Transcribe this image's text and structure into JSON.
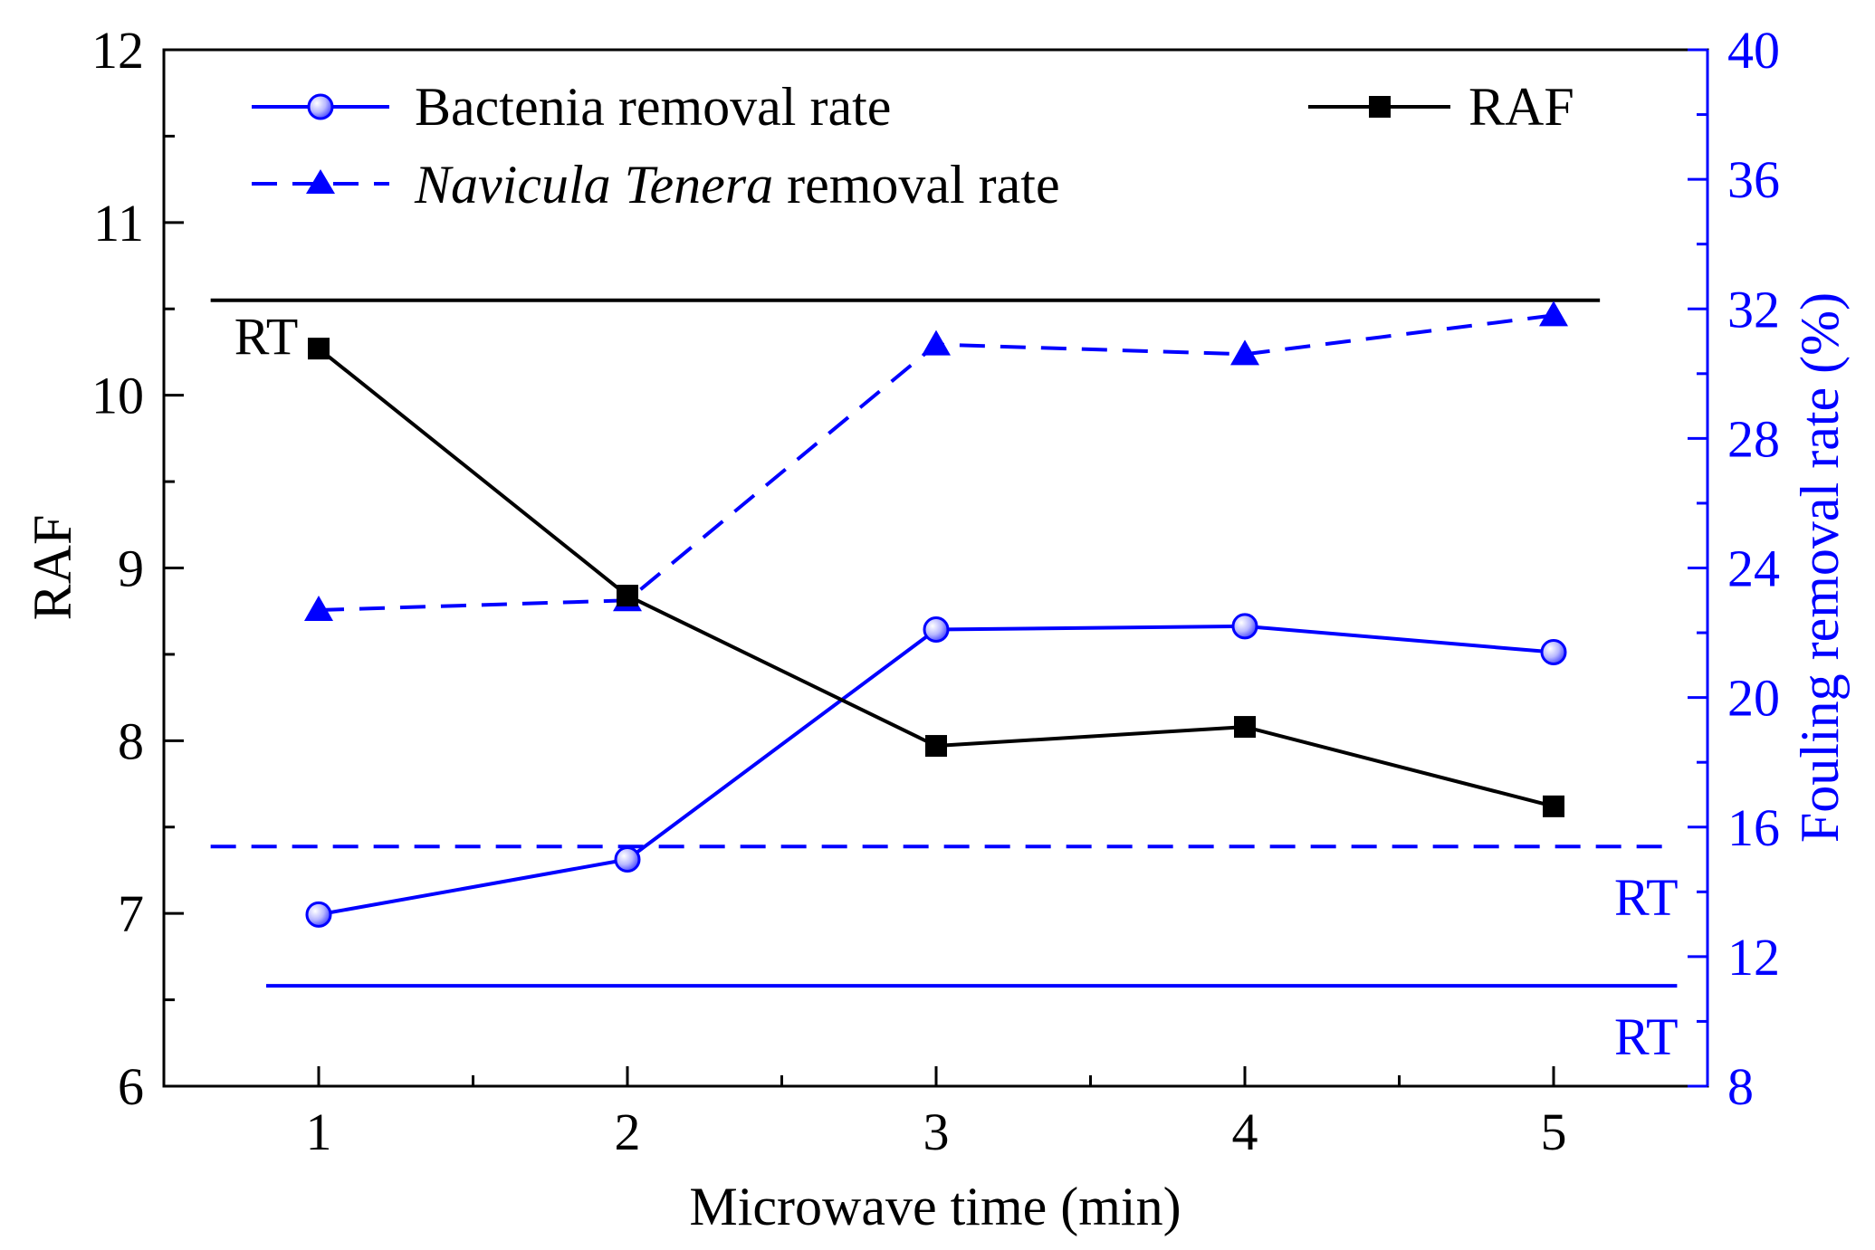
{
  "chart_data": {
    "type": "line",
    "xlabel": "Microwave time (min)",
    "ylabel_left": "RAF",
    "ylabel_right": "Fouling removal rate (%)",
    "x_ticks": [
      1,
      2,
      3,
      4,
      5
    ],
    "ylim_left": [
      6,
      12
    ],
    "y_ticks_left": [
      6,
      7,
      8,
      9,
      10,
      11,
      12
    ],
    "ylim_right": [
      8,
      40
    ],
    "y_ticks_right": [
      8,
      12,
      16,
      20,
      24,
      28,
      32,
      36,
      40
    ],
    "series": [
      {
        "name": "Bactenia removal rate",
        "axis": "right",
        "color": "#0000ff",
        "style": "solid",
        "marker": "circle",
        "x": [
          1,
          2,
          3,
          4,
          5
        ],
        "values": [
          13.3,
          15.0,
          22.1,
          22.2,
          21.4
        ]
      },
      {
        "name_italic": "Navicula Tenera",
        "name_rest": " removal rate",
        "axis": "right",
        "color": "#0000ff",
        "style": "dashed",
        "marker": "triangle",
        "x": [
          1,
          2,
          3,
          4,
          5
        ],
        "values": [
          22.7,
          23.0,
          30.9,
          30.6,
          31.8
        ]
      },
      {
        "name": "RAF",
        "axis": "left",
        "color": "#000000",
        "style": "solid",
        "marker": "square",
        "x": [
          1,
          2,
          3,
          4,
          5
        ],
        "values": [
          10.27,
          8.84,
          7.97,
          8.08,
          7.62
        ]
      }
    ],
    "reference_lines": [
      {
        "label": "RT",
        "axis": "left",
        "value": 10.55,
        "color": "#000000",
        "style": "solid",
        "x_range": [
          0.65,
          5.15
        ],
        "label_x": 0.83
      },
      {
        "label": "RT",
        "axis": "right",
        "value": 15.4,
        "color": "#0000ff",
        "style": "dashed",
        "x_range": [
          0.65,
          5.4
        ],
        "label_x": 5.3
      },
      {
        "label": "RT",
        "axis": "right",
        "value": 11.1,
        "color": "#0000ff",
        "style": "solid",
        "x_range": [
          0.83,
          5.4
        ],
        "label_x": 5.3
      }
    ]
  }
}
